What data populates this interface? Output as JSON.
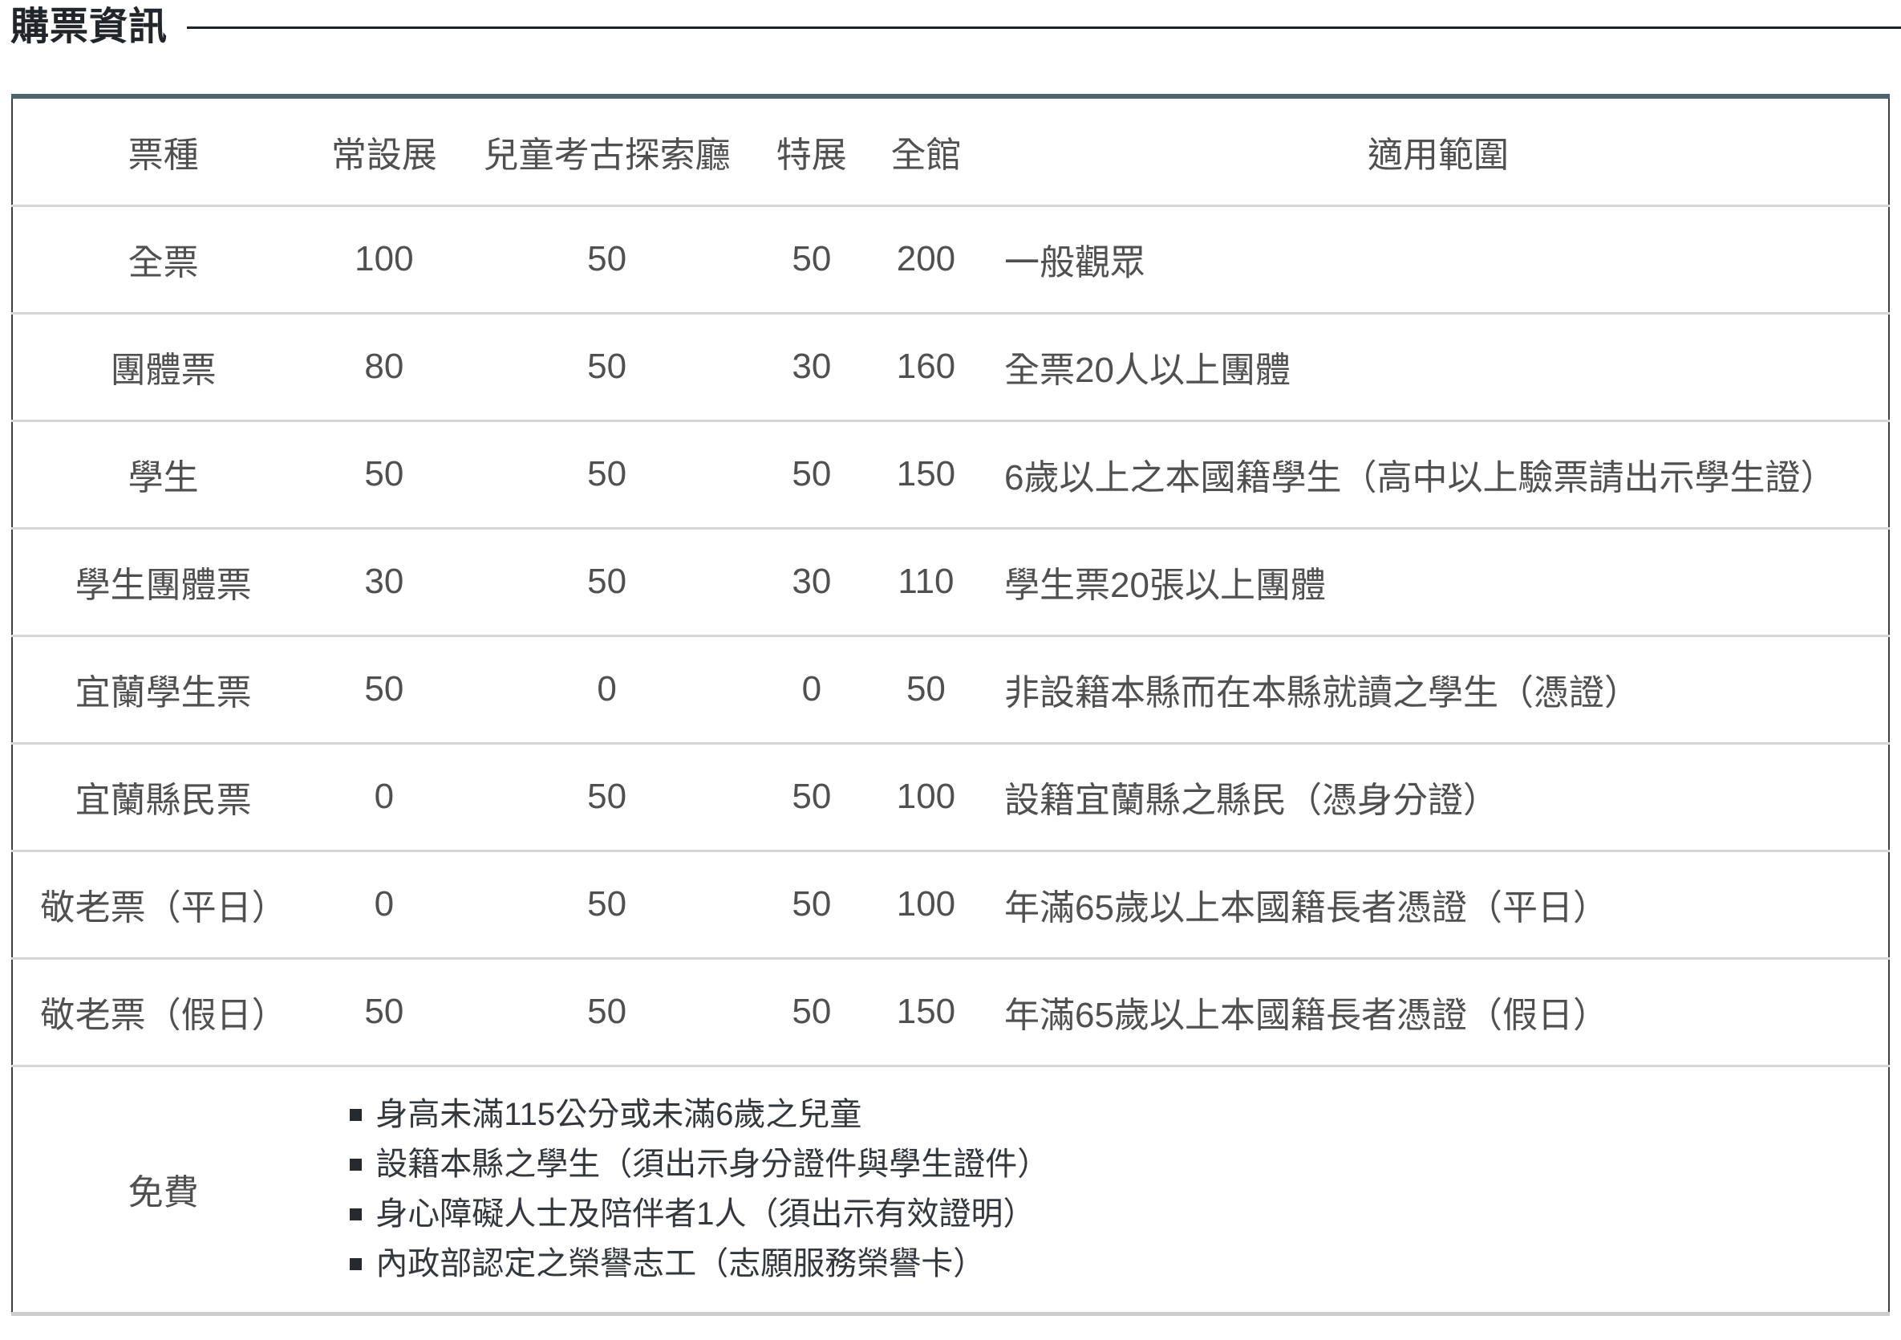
{
  "page": {
    "title": "購票資訊"
  },
  "table": {
    "columns": [
      "票種",
      "常設展",
      "兒童考古探索廳",
      "特展",
      "全館",
      "適用範圍"
    ],
    "rows": [
      {
        "type": "全票",
        "prices": [
          "100",
          "50",
          "50",
          "200"
        ],
        "scope": "一般觀眾"
      },
      {
        "type": "團體票",
        "prices": [
          "80",
          "50",
          "30",
          "160"
        ],
        "scope": "全票20人以上團體"
      },
      {
        "type": "學生",
        "prices": [
          "50",
          "50",
          "50",
          "150"
        ],
        "scope": "6歲以上之本國籍學生（高中以上驗票請出示學生證）"
      },
      {
        "type": "學生團體票",
        "prices": [
          "30",
          "50",
          "30",
          "110"
        ],
        "scope": "學生票20張以上團體"
      },
      {
        "type": "宜蘭學生票",
        "prices": [
          "50",
          "0",
          "0",
          "50"
        ],
        "scope": "非設籍本縣而在本縣就讀之學生（憑證）"
      },
      {
        "type": "宜蘭縣民票",
        "prices": [
          "0",
          "50",
          "50",
          "100"
        ],
        "scope": "設籍宜蘭縣之縣民（憑身分證）"
      },
      {
        "type": "敬老票（平日）",
        "prices": [
          "0",
          "50",
          "50",
          "100"
        ],
        "scope": "年滿65歲以上本國籍長者憑證（平日）"
      },
      {
        "type": "敬老票（假日）",
        "prices": [
          "50",
          "50",
          "50",
          "150"
        ],
        "scope": "年滿65歲以上本國籍長者憑證（假日）"
      }
    ],
    "free": {
      "label": "免費",
      "items": [
        "身高未滿115公分或未滿6歲之兒童",
        "設籍本縣之學生（須出示身分證件與學生證件）",
        "身心障礙人士及陪伴者1人（須出示有效證明）",
        "內政部認定之榮譽志工（志願服務榮譽卡）"
      ]
    }
  }
}
